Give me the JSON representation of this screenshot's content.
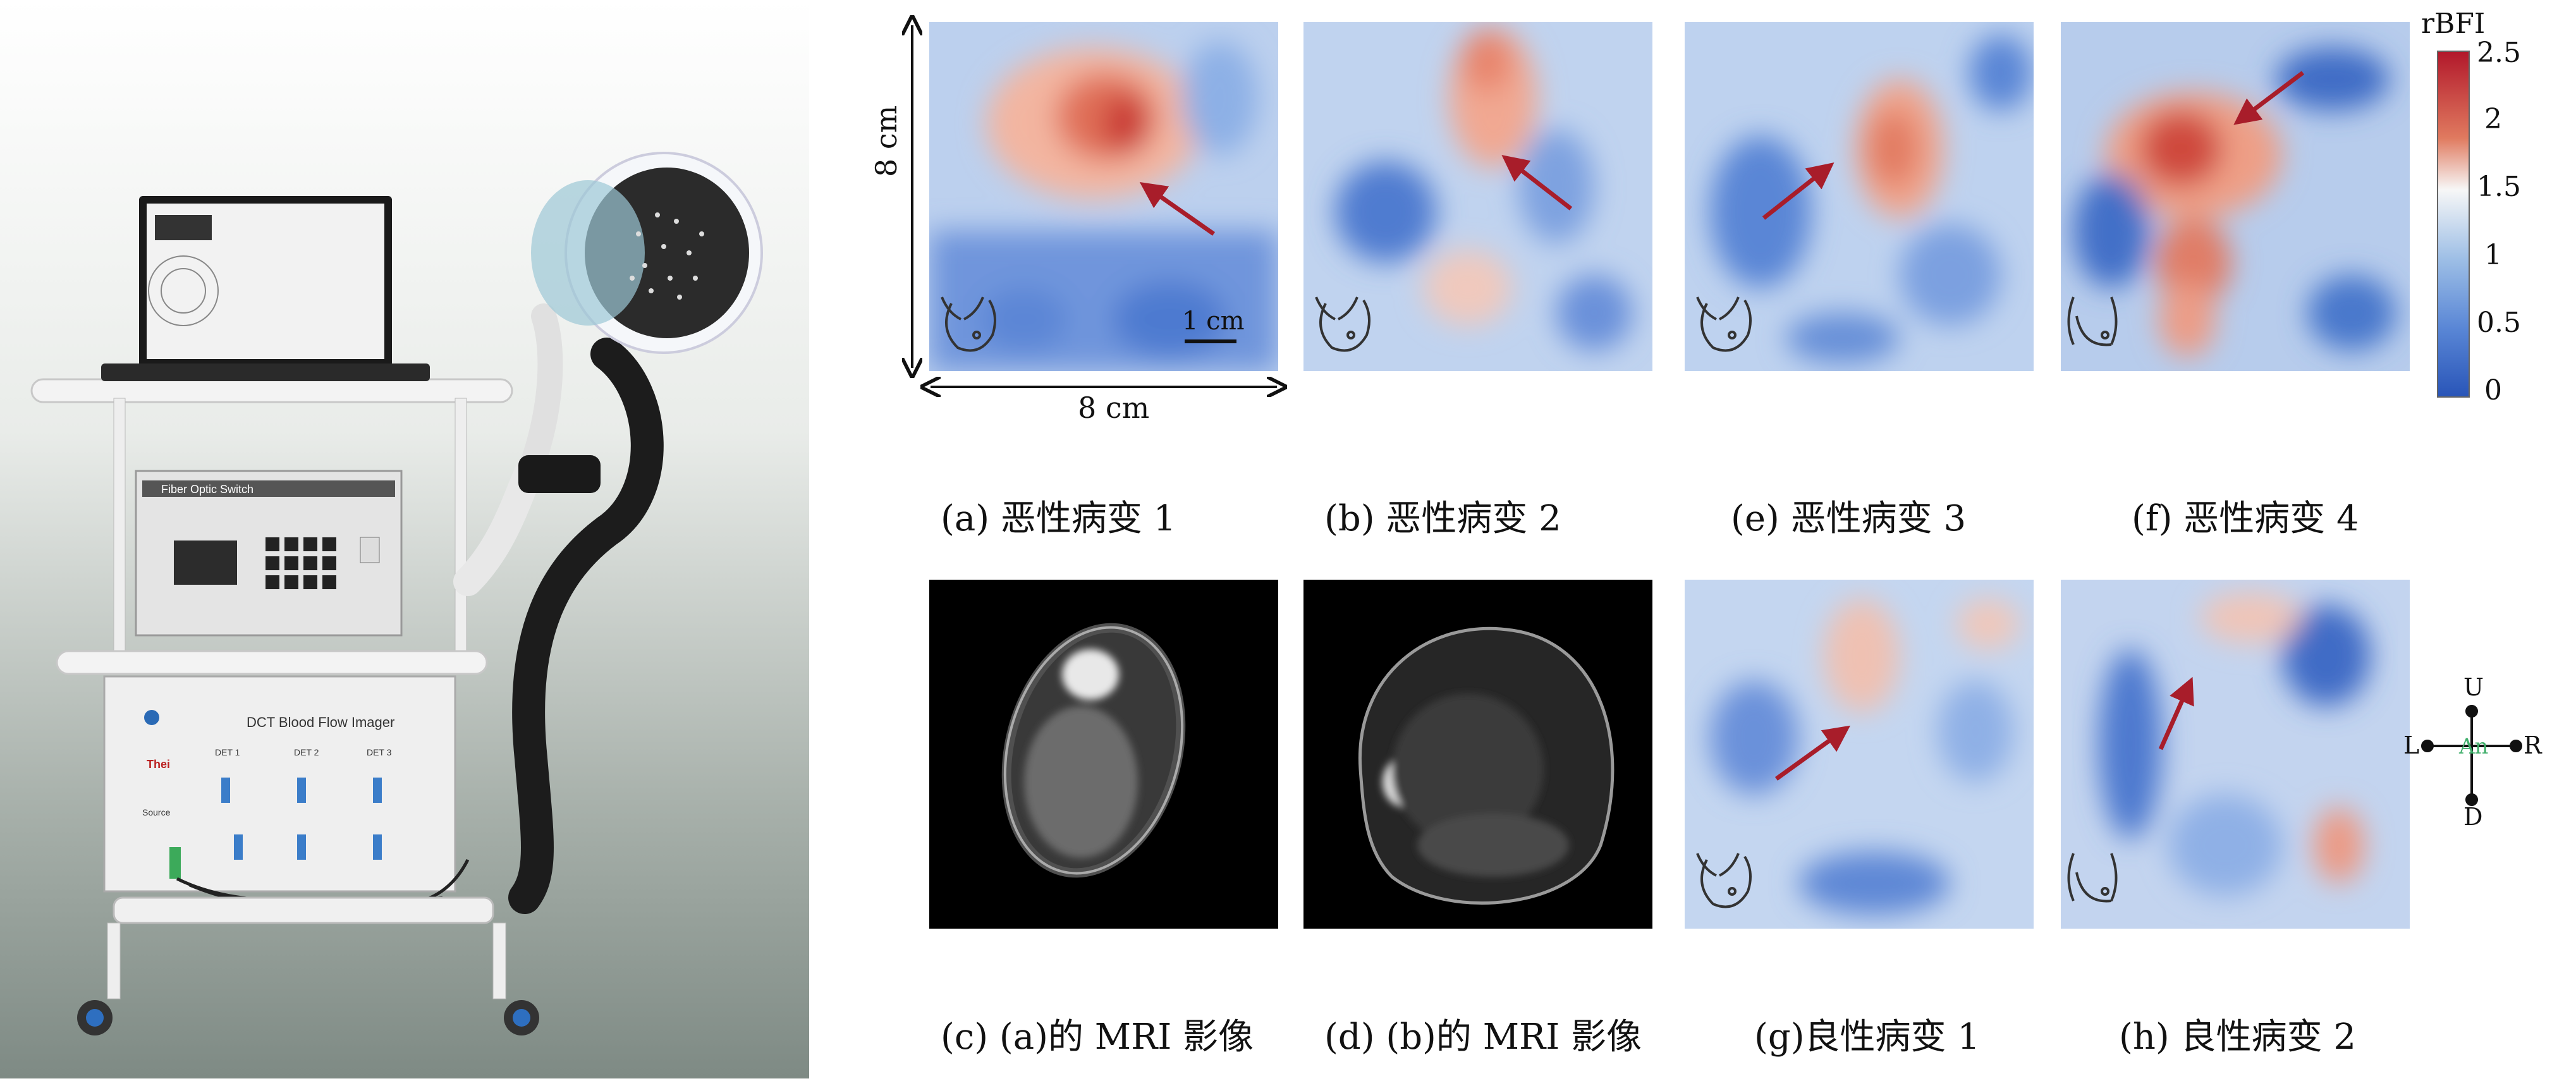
{
  "heatmap_panels": [
    {
      "id": "a",
      "caption": "(a)  恶性病变 1"
    },
    {
      "id": "b",
      "caption": "(b)  恶性病变 2"
    },
    {
      "id": "e",
      "caption": "(e)  恶性病变 3"
    },
    {
      "id": "f",
      "caption": "(f)  恶性病变 4"
    },
    {
      "id": "g",
      "caption": "(g)良性病变 1"
    },
    {
      "id": "h",
      "caption": "(h)  良性病变 2"
    }
  ],
  "mri_panels": [
    {
      "id": "c",
      "caption": "(c) (a)的 MRI 影像"
    },
    {
      "id": "d",
      "caption": "(d) (b)的 MRI 影像"
    }
  ],
  "dimensions": {
    "height_label": "8 cm",
    "width_label": "8 cm",
    "scale_bar_label": "1 cm"
  },
  "colorbar": {
    "title": "rBFI",
    "ticks": [
      "2.5",
      "2",
      "1.5",
      "1",
      "0.5",
      "0"
    ],
    "min": 0,
    "max": 2.5,
    "colors": [
      "#b2182b",
      "#ef8a62",
      "#f7f7f7",
      "#67a9cf",
      "#2166ac"
    ]
  },
  "orientation": {
    "up": "U",
    "down": "D",
    "left": "L",
    "right": "R",
    "center": "An"
  },
  "device": {
    "screen_label": "Fiber Optic Switch",
    "imager_label": "DCT Blood Flow Imager",
    "detector_labels": [
      "DET 1",
      "DET 2",
      "DET 3"
    ],
    "source_label": "Source",
    "brand_label": "Thei"
  },
  "colors": {
    "arrow_red": "#a81d2a",
    "arrow_green": "#6ab04c"
  }
}
